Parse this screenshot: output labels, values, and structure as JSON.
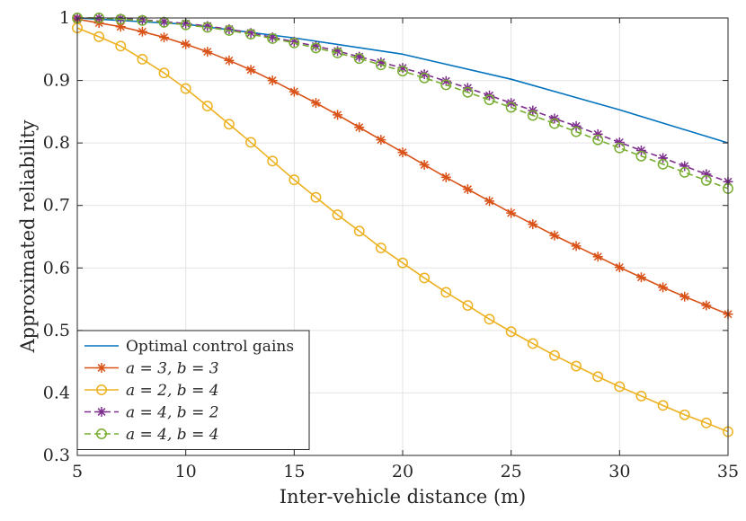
{
  "chart_data": {
    "type": "line",
    "title": "",
    "xlabel": "Inter-vehicle distance (m)",
    "ylabel": "Approximated reliability",
    "xlim": [
      5,
      35
    ],
    "ylim": [
      0.3,
      1
    ],
    "grid": true,
    "legend_position": "bottom-left",
    "x_ticks": [
      5,
      10,
      15,
      20,
      25,
      30,
      35
    ],
    "x_tick_labels": [
      "5",
      "10",
      "15",
      "20",
      "25",
      "30",
      "35"
    ],
    "y_ticks": [
      0.3,
      0.4,
      0.5,
      0.6,
      0.7,
      0.8,
      0.9,
      1
    ],
    "y_tick_labels": [
      "0.3",
      "0.4",
      "0.5",
      "0.6",
      "0.7",
      "0.8",
      "0.9",
      "1"
    ],
    "series": [
      {
        "name": "Optimal control gains",
        "color": "#0072BD",
        "line_style": "solid",
        "marker": "none",
        "x": [
          5,
          10,
          15,
          20,
          25,
          30,
          35
        ],
        "values": [
          1.0,
          0.99,
          0.968,
          0.942,
          0.902,
          0.853,
          0.8
        ]
      },
      {
        "name": "a = 3, b = 3",
        "color": "#D95319",
        "line_style": "solid",
        "marker": "star",
        "x": [
          5,
          6,
          7,
          8,
          9,
          10,
          11,
          12,
          13,
          14,
          15,
          16,
          17,
          18,
          19,
          20,
          21,
          22,
          23,
          24,
          25,
          26,
          27,
          28,
          29,
          30,
          31,
          32,
          33,
          34,
          35
        ],
        "values": [
          0.998,
          0.992,
          0.986,
          0.978,
          0.969,
          0.958,
          0.946,
          0.932,
          0.917,
          0.9,
          0.882,
          0.864,
          0.845,
          0.825,
          0.805,
          0.785,
          0.765,
          0.745,
          0.726,
          0.707,
          0.688,
          0.67,
          0.652,
          0.635,
          0.618,
          0.601,
          0.585,
          0.569,
          0.554,
          0.54,
          0.526
        ]
      },
      {
        "name": "a = 2, b = 4",
        "color": "#EDB120",
        "line_style": "solid",
        "marker": "circle",
        "x": [
          5,
          6,
          7,
          8,
          9,
          10,
          11,
          12,
          13,
          14,
          15,
          16,
          17,
          18,
          19,
          20,
          21,
          22,
          23,
          24,
          25,
          26,
          27,
          28,
          29,
          30,
          31,
          32,
          33,
          34,
          35
        ],
        "values": [
          0.984,
          0.97,
          0.955,
          0.934,
          0.912,
          0.887,
          0.859,
          0.83,
          0.801,
          0.771,
          0.741,
          0.713,
          0.685,
          0.659,
          0.632,
          0.608,
          0.584,
          0.561,
          0.54,
          0.518,
          0.498,
          0.479,
          0.46,
          0.443,
          0.426,
          0.41,
          0.395,
          0.38,
          0.365,
          0.352,
          0.338
        ]
      },
      {
        "name": "a = 4, b = 2",
        "color": "#7E2F8E",
        "line_style": "dashed",
        "marker": "star",
        "x": [
          5,
          6,
          7,
          8,
          9,
          10,
          11,
          12,
          13,
          14,
          15,
          16,
          17,
          18,
          19,
          20,
          21,
          22,
          23,
          24,
          25,
          26,
          27,
          28,
          29,
          30,
          31,
          32,
          33,
          34,
          35
        ],
        "values": [
          1.0,
          1.0,
          0.999,
          0.997,
          0.994,
          0.991,
          0.987,
          0.982,
          0.976,
          0.969,
          0.962,
          0.955,
          0.947,
          0.938,
          0.929,
          0.92,
          0.91,
          0.899,
          0.888,
          0.876,
          0.864,
          0.852,
          0.839,
          0.827,
          0.814,
          0.801,
          0.788,
          0.776,
          0.763,
          0.75,
          0.738
        ]
      },
      {
        "name": "a = 4, b = 4",
        "color": "#77AC30",
        "line_style": "dashed",
        "marker": "circle",
        "x": [
          5,
          6,
          7,
          8,
          9,
          10,
          11,
          12,
          13,
          14,
          15,
          16,
          17,
          18,
          19,
          20,
          21,
          22,
          23,
          24,
          25,
          26,
          27,
          28,
          29,
          30,
          31,
          32,
          33,
          34,
          35
        ],
        "values": [
          1.0,
          1.0,
          0.998,
          0.996,
          0.993,
          0.989,
          0.985,
          0.98,
          0.974,
          0.967,
          0.96,
          0.952,
          0.944,
          0.935,
          0.925,
          0.915,
          0.904,
          0.893,
          0.881,
          0.869,
          0.857,
          0.844,
          0.831,
          0.818,
          0.805,
          0.792,
          0.779,
          0.766,
          0.753,
          0.74,
          0.727
        ]
      }
    ]
  }
}
